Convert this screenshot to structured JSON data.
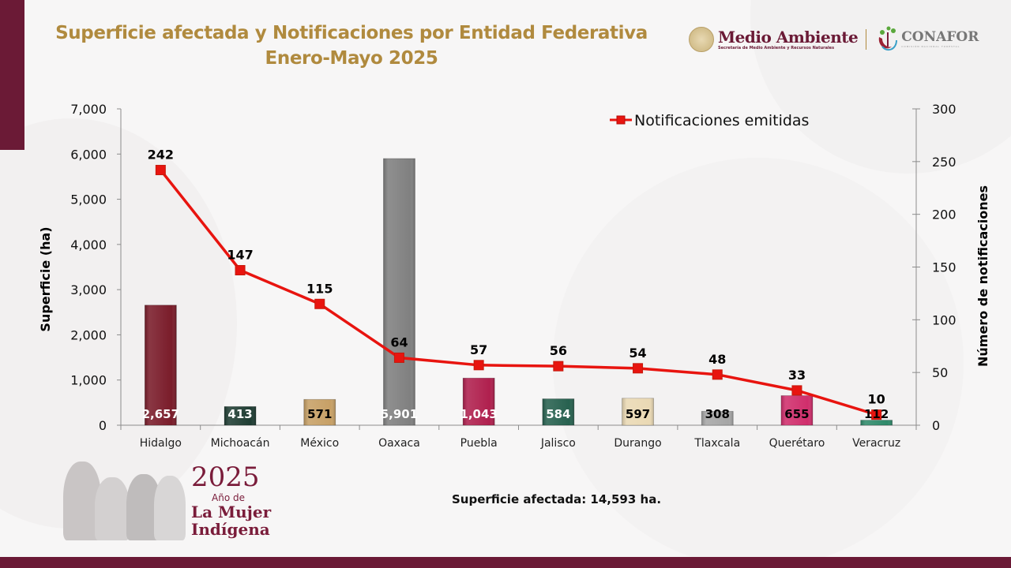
{
  "header": {
    "title_line1": "Superficie afectada y Notificaciones por Entidad Federativa",
    "title_line2": "Enero-Mayo 2025"
  },
  "logos": {
    "medio_ambiente": "Medio Ambiente",
    "medio_ambiente_sub": "Secretaría de Medio Ambiente y Recursos Naturales",
    "conafor": "CONAFOR",
    "conafor_sub": "COMISIÓN NACIONAL FORESTAL"
  },
  "footer": {
    "year": "2025",
    "year_sub": "Año de",
    "line1": "La Mujer",
    "line2": "Indígena",
    "total_label": "Superficie afectada: 14,593 ha."
  },
  "colors": {
    "brand_maroon": "#6b1a36",
    "title_gold": "#b08a3e",
    "line_red": "#e8140f"
  },
  "chart_data": {
    "type": "bar",
    "title": "Superficie afectada y Notificaciones por Entidad Federativa Enero-Mayo 2025",
    "categories": [
      "Hidalgo",
      "Michoacán",
      "México",
      "Oaxaca",
      "Puebla",
      "Jalisco",
      "Durango",
      "Tlaxcala",
      "Querétaro",
      "Veracruz"
    ],
    "ylabel": "Superficie (ha)",
    "y2label": "Número de notificaciones",
    "ylim": [
      0,
      7000
    ],
    "y2lim": [
      0,
      300
    ],
    "yticks": [
      "0",
      "1,000",
      "2,000",
      "3,000",
      "4,000",
      "5,000",
      "6,000",
      "7,000"
    ],
    "y2ticks": [
      "0",
      "50",
      "100",
      "150",
      "200",
      "250",
      "300"
    ],
    "legend_position": "top-right",
    "grid": false,
    "series": [
      {
        "name": "Superficie afectada (ha)",
        "type": "bar",
        "axis": "left",
        "values": [
          2657,
          413,
          571,
          5901,
          1043,
          584,
          597,
          308,
          655,
          112
        ],
        "labels": [
          "2,657",
          "413",
          "571",
          "5,901",
          "1,043",
          "584",
          "597",
          "308",
          "655",
          "112"
        ],
        "colors": [
          "#7a1c2a",
          "#1f3d33",
          "#c7a066",
          "#808080",
          "#b0204e",
          "#27614f",
          "#ead9b4",
          "#a6a6a6",
          "#d02e6c",
          "#2f8a6a"
        ],
        "label_colors": [
          "#ffffff",
          "#ffffff",
          "#000000",
          "#ffffff",
          "#ffffff",
          "#ffffff",
          "#000000",
          "#000000",
          "#000000",
          "#000000"
        ]
      },
      {
        "name": "Notificaciones emitidas",
        "type": "line",
        "axis": "right",
        "values": [
          242,
          147,
          115,
          64,
          57,
          56,
          54,
          48,
          33,
          10
        ],
        "color": "#e8140f"
      }
    ]
  }
}
